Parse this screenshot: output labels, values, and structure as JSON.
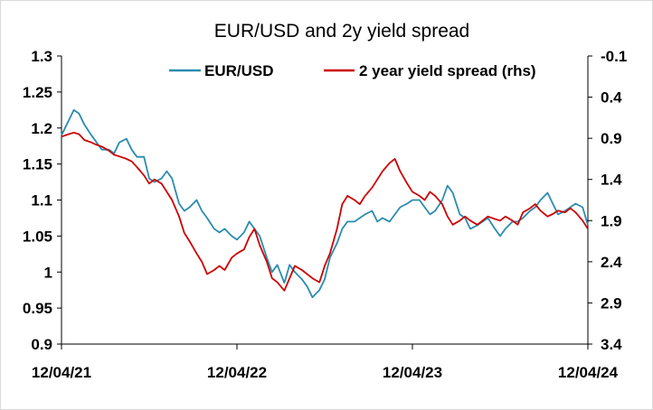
{
  "chart_data": {
    "type": "line",
    "title": "EUR/USD and 2y yield spread",
    "x_ticks": [
      "12/04/21",
      "12/04/22",
      "12/04/23",
      "12/04/24"
    ],
    "x_range": [
      "12/04/21",
      "12/04/24"
    ],
    "y_left": {
      "ylim": [
        0.9,
        1.3
      ],
      "ticks": [
        "1.3",
        "1.25",
        "1.2",
        "1.15",
        "1.1",
        "1.05",
        "1",
        "0.95",
        "0.9"
      ]
    },
    "y_right": {
      "ylim": [
        -0.1,
        3.4
      ],
      "inverted": true,
      "ticks": [
        "-0.1",
        "0.4",
        "0.9",
        "1.4",
        "1.9",
        "2.4",
        "2.9",
        "3.4"
      ]
    },
    "grid": false,
    "legend_position": "top",
    "series": [
      {
        "name": "EUR/USD",
        "axis": "left",
        "color": "#2a8cb0",
        "x": [
          0.0,
          0.04,
          0.07,
          0.1,
          0.13,
          0.17,
          0.2,
          0.23,
          0.27,
          0.3,
          0.33,
          0.37,
          0.4,
          0.43,
          0.47,
          0.5,
          0.53,
          0.57,
          0.6,
          0.63,
          0.67,
          0.7,
          0.73,
          0.77,
          0.8,
          0.83,
          0.87,
          0.9,
          0.93,
          0.97,
          1.0,
          1.04,
          1.07,
          1.1,
          1.13,
          1.17,
          1.2,
          1.23,
          1.27,
          1.3,
          1.33,
          1.37,
          1.4,
          1.43,
          1.47,
          1.5,
          1.53,
          1.57,
          1.6,
          1.63,
          1.67,
          1.7,
          1.73,
          1.77,
          1.8,
          1.83,
          1.87,
          1.9,
          1.93,
          1.97,
          2.0,
          2.04,
          2.07,
          2.1,
          2.13,
          2.17,
          2.2,
          2.23,
          2.27,
          2.3,
          2.33,
          2.37,
          2.4,
          2.43,
          2.47,
          2.5,
          2.53,
          2.57,
          2.6,
          2.63,
          2.67,
          2.7,
          2.73,
          2.77,
          2.8,
          2.83,
          2.87,
          2.9,
          2.93,
          2.97,
          3.0
        ],
        "values": [
          1.19,
          1.21,
          1.225,
          1.22,
          1.205,
          1.19,
          1.18,
          1.17,
          1.17,
          1.165,
          1.18,
          1.185,
          1.17,
          1.16,
          1.16,
          1.13,
          1.125,
          1.13,
          1.14,
          1.13,
          1.095,
          1.085,
          1.09,
          1.1,
          1.085,
          1.075,
          1.06,
          1.055,
          1.06,
          1.05,
          1.045,
          1.055,
          1.07,
          1.06,
          1.05,
          1.02,
          1.0,
          1.01,
          0.985,
          1.01,
          1.0,
          0.99,
          0.98,
          0.965,
          0.975,
          0.99,
          1.02,
          1.04,
          1.06,
          1.07,
          1.07,
          1.075,
          1.08,
          1.085,
          1.07,
          1.075,
          1.07,
          1.08,
          1.09,
          1.095,
          1.1,
          1.1,
          1.09,
          1.08,
          1.085,
          1.1,
          1.12,
          1.11,
          1.08,
          1.075,
          1.06,
          1.065,
          1.07,
          1.075,
          1.06,
          1.05,
          1.06,
          1.07,
          1.07,
          1.075,
          1.085,
          1.09,
          1.1,
          1.11,
          1.095,
          1.08,
          1.085,
          1.09,
          1.095,
          1.09,
          1.065
        ]
      },
      {
        "name": "2 year yield spread (rhs)",
        "axis": "right",
        "color": "#cc0000",
        "x": [
          0.0,
          0.04,
          0.07,
          0.1,
          0.13,
          0.17,
          0.2,
          0.23,
          0.27,
          0.3,
          0.33,
          0.37,
          0.4,
          0.43,
          0.47,
          0.5,
          0.53,
          0.57,
          0.6,
          0.63,
          0.67,
          0.7,
          0.73,
          0.77,
          0.8,
          0.83,
          0.87,
          0.9,
          0.93,
          0.97,
          1.0,
          1.04,
          1.07,
          1.1,
          1.13,
          1.17,
          1.2,
          1.23,
          1.27,
          1.3,
          1.33,
          1.37,
          1.4,
          1.43,
          1.47,
          1.5,
          1.53,
          1.57,
          1.6,
          1.63,
          1.67,
          1.7,
          1.73,
          1.77,
          1.8,
          1.83,
          1.87,
          1.9,
          1.93,
          1.97,
          2.0,
          2.04,
          2.07,
          2.1,
          2.13,
          2.17,
          2.2,
          2.23,
          2.27,
          2.3,
          2.33,
          2.37,
          2.4,
          2.43,
          2.47,
          2.5,
          2.53,
          2.57,
          2.6,
          2.63,
          2.67,
          2.7,
          2.73,
          2.77,
          2.8,
          2.83,
          2.87,
          2.9,
          2.93,
          2.97,
          3.0
        ],
        "values": [
          0.88,
          0.85,
          0.83,
          0.85,
          0.92,
          0.95,
          0.98,
          1.0,
          1.05,
          1.1,
          1.12,
          1.15,
          1.18,
          1.25,
          1.35,
          1.45,
          1.4,
          1.45,
          1.55,
          1.65,
          1.85,
          2.05,
          2.15,
          2.3,
          2.4,
          2.55,
          2.5,
          2.45,
          2.5,
          2.35,
          2.3,
          2.25,
          2.1,
          2.0,
          2.2,
          2.4,
          2.6,
          2.65,
          2.75,
          2.6,
          2.45,
          2.5,
          2.55,
          2.6,
          2.65,
          2.45,
          2.3,
          2.0,
          1.7,
          1.6,
          1.65,
          1.7,
          1.6,
          1.5,
          1.4,
          1.3,
          1.2,
          1.15,
          1.3,
          1.45,
          1.55,
          1.6,
          1.65,
          1.55,
          1.6,
          1.7,
          1.85,
          1.95,
          1.9,
          1.85,
          1.9,
          1.95,
          1.9,
          1.85,
          1.88,
          1.9,
          1.85,
          1.9,
          1.95,
          1.8,
          1.75,
          1.7,
          1.78,
          1.85,
          1.82,
          1.78,
          1.8,
          1.75,
          1.8,
          1.9,
          2.0
        ]
      }
    ]
  }
}
